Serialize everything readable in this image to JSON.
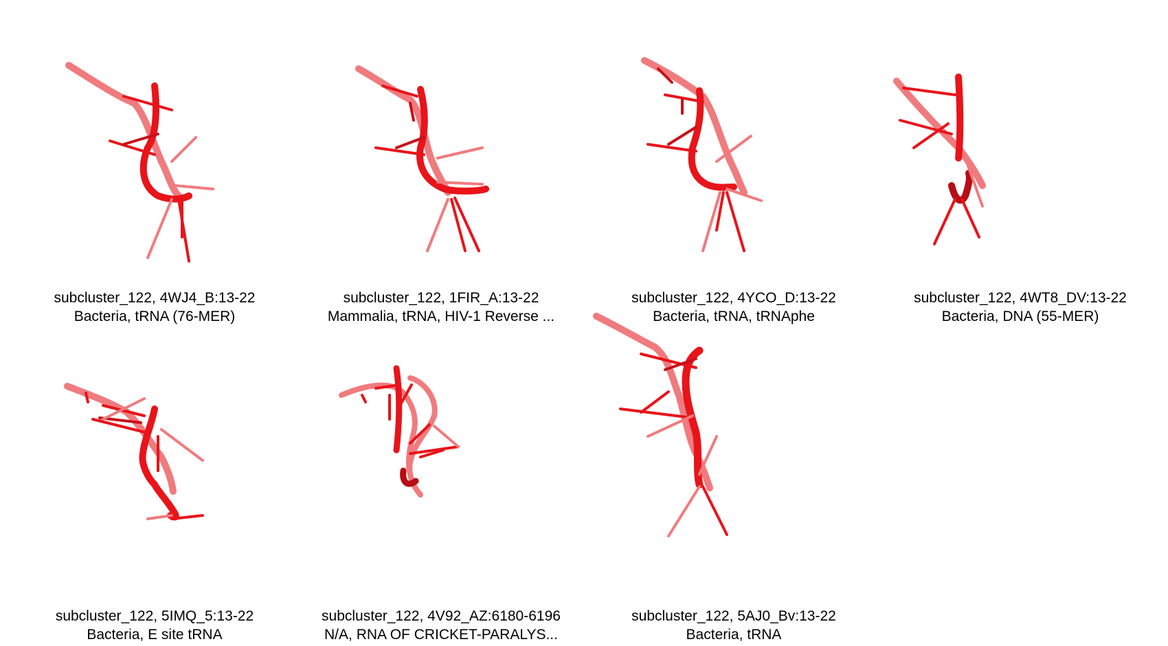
{
  "structure_color": "#e8141a",
  "panels": [
    {
      "line1": "subcluster_122, 4WJ4_B:13-22",
      "line2": "Bacteria, tRNA (76-MER)"
    },
    {
      "line1": "subcluster_122, 1FIR_A:13-22",
      "line2": "Mammalia, tRNA, HIV-1 Reverse ..."
    },
    {
      "line1": "subcluster_122, 4YCO_D:13-22",
      "line2": "Bacteria, tRNA, tRNAphe"
    },
    {
      "line1": "subcluster_122, 4WT8_DV:13-22",
      "line2": "Bacteria, DNA (55-MER)"
    },
    {
      "line1": "subcluster_122, 5IMQ_5:13-22",
      "line2": "Bacteria, E site tRNA"
    },
    {
      "line1": "subcluster_122, 4V92_AZ:6180-6196",
      "line2": "N/A, RNA OF CRICKET-PARALYS..."
    },
    {
      "line1": "subcluster_122, 5AJ0_Bv:13-22",
      "line2": "Bacteria, tRNA"
    }
  ]
}
